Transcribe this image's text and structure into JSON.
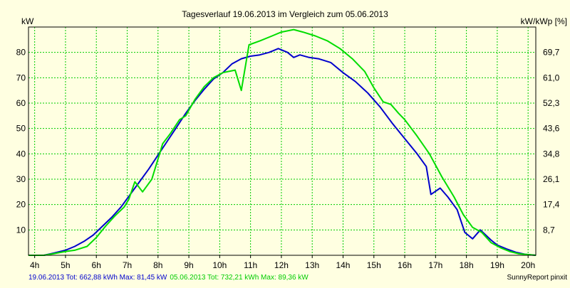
{
  "chart_data": {
    "type": "line",
    "title": "Tagesverlauf 19.06.2013 im Vergleich zum 05.06.2013",
    "ylabel_left": "kW",
    "ylabel_right": "kW/kWp [%]",
    "xlim": [
      3.8,
      20.25
    ],
    "ylim": [
      0,
      90
    ],
    "grid": true,
    "x_ticks": [
      {
        "x": 4,
        "label": "4h"
      },
      {
        "x": 5,
        "label": "5h"
      },
      {
        "x": 6,
        "label": "6h"
      },
      {
        "x": 7,
        "label": "7h"
      },
      {
        "x": 8,
        "label": "8h"
      },
      {
        "x": 9,
        "label": "9h"
      },
      {
        "x": 10,
        "label": "10h"
      },
      {
        "x": 11,
        "label": "11h"
      },
      {
        "x": 12,
        "label": "12h"
      },
      {
        "x": 13,
        "label": "13h"
      },
      {
        "x": 14,
        "label": "14h"
      },
      {
        "x": 15,
        "label": "15h"
      },
      {
        "x": 16,
        "label": "16h"
      },
      {
        "x": 17,
        "label": "17h"
      },
      {
        "x": 18,
        "label": "18h"
      },
      {
        "x": 19,
        "label": "19h"
      },
      {
        "x": 20,
        "label": "20h"
      }
    ],
    "y_ticks_left": [
      {
        "y": 10,
        "label": "10"
      },
      {
        "y": 20,
        "label": "20"
      },
      {
        "y": 30,
        "label": "30"
      },
      {
        "y": 40,
        "label": "40"
      },
      {
        "y": 50,
        "label": "50"
      },
      {
        "y": 60,
        "label": "60"
      },
      {
        "y": 70,
        "label": "70"
      },
      {
        "y": 80,
        "label": "80"
      }
    ],
    "y_ticks_right": [
      {
        "y": 10,
        "label": "8,7"
      },
      {
        "y": 20,
        "label": "17,4"
      },
      {
        "y": 30,
        "label": "26,1"
      },
      {
        "y": 40,
        "label": "34,8"
      },
      {
        "y": 50,
        "label": "43,6"
      },
      {
        "y": 60,
        "label": "52,3"
      },
      {
        "y": 70,
        "label": "61,0"
      },
      {
        "y": 80,
        "label": "69,7"
      }
    ],
    "series": [
      {
        "name": "19.06.2013",
        "color": "#0000cc",
        "points": [
          [
            3.8,
            0
          ],
          [
            4.3,
            0
          ],
          [
            4.6,
            0.8
          ],
          [
            5,
            2
          ],
          [
            5.3,
            3.5
          ],
          [
            5.6,
            5.5
          ],
          [
            5.9,
            8
          ],
          [
            6.2,
            11.5
          ],
          [
            6.5,
            15
          ],
          [
            6.8,
            19
          ],
          [
            7.1,
            24
          ],
          [
            7.4,
            29
          ],
          [
            7.7,
            34
          ],
          [
            8,
            39.5
          ],
          [
            8.3,
            45
          ],
          [
            8.6,
            50.5
          ],
          [
            8.9,
            56
          ],
          [
            9.2,
            61
          ],
          [
            9.5,
            65.5
          ],
          [
            9.8,
            69.5
          ],
          [
            10.1,
            72
          ],
          [
            10.4,
            75.5
          ],
          [
            10.7,
            77.5
          ],
          [
            11,
            78.5
          ],
          [
            11.3,
            79
          ],
          [
            11.6,
            80
          ],
          [
            11.9,
            81.5
          ],
          [
            12.2,
            80
          ],
          [
            12.4,
            78
          ],
          [
            12.6,
            79
          ],
          [
            12.9,
            78
          ],
          [
            13.2,
            77.5
          ],
          [
            13.6,
            76
          ],
          [
            14,
            72
          ],
          [
            14.4,
            68.5
          ],
          [
            14.8,
            64
          ],
          [
            15.2,
            58.5
          ],
          [
            15.6,
            52
          ],
          [
            16,
            46
          ],
          [
            16.4,
            40
          ],
          [
            16.7,
            35
          ],
          [
            16.85,
            24
          ],
          [
            17.15,
            26.5
          ],
          [
            17.4,
            23
          ],
          [
            17.7,
            18
          ],
          [
            17.95,
            9
          ],
          [
            18.2,
            6.5
          ],
          [
            18.45,
            10
          ],
          [
            18.8,
            6
          ],
          [
            19,
            4
          ],
          [
            19.3,
            2.5
          ],
          [
            19.6,
            1.2
          ],
          [
            19.9,
            0.4
          ],
          [
            20.25,
            0
          ]
        ]
      },
      {
        "name": "05.06.2013",
        "color": "#00dd00",
        "points": [
          [
            3.8,
            0
          ],
          [
            4.3,
            0
          ],
          [
            4.6,
            0.6
          ],
          [
            5,
            1.5
          ],
          [
            5.3,
            2
          ],
          [
            5.7,
            3.5
          ],
          [
            6,
            7
          ],
          [
            6.3,
            11.5
          ],
          [
            6.6,
            15.5
          ],
          [
            6.9,
            19
          ],
          [
            7.05,
            22
          ],
          [
            7.25,
            29
          ],
          [
            7.5,
            25
          ],
          [
            7.8,
            30
          ],
          [
            8,
            38
          ],
          [
            8.15,
            44
          ],
          [
            8.4,
            48
          ],
          [
            8.7,
            53.5
          ],
          [
            8.9,
            55
          ],
          [
            9.2,
            61.5
          ],
          [
            9.5,
            66.5
          ],
          [
            9.8,
            70
          ],
          [
            10.1,
            72
          ],
          [
            10.3,
            72.5
          ],
          [
            10.5,
            73
          ],
          [
            10.7,
            65
          ],
          [
            10.95,
            83
          ],
          [
            11.3,
            84.5
          ],
          [
            11.7,
            86.5
          ],
          [
            12,
            88
          ],
          [
            12.4,
            89
          ],
          [
            12.7,
            88
          ],
          [
            13.1,
            86.5
          ],
          [
            13.5,
            84.5
          ],
          [
            13.9,
            81.5
          ],
          [
            14.3,
            77.5
          ],
          [
            14.7,
            72.5
          ],
          [
            15,
            66
          ],
          [
            15.3,
            60.5
          ],
          [
            15.55,
            59.5
          ],
          [
            15.8,
            56
          ],
          [
            16,
            53.5
          ],
          [
            16.4,
            47
          ],
          [
            16.8,
            40
          ],
          [
            17.2,
            31
          ],
          [
            17.6,
            23
          ],
          [
            17.9,
            16
          ],
          [
            18.2,
            11
          ],
          [
            18.5,
            9
          ],
          [
            18.8,
            5
          ],
          [
            19.1,
            3
          ],
          [
            19.4,
            1.5
          ],
          [
            19.7,
            0.6
          ],
          [
            20.25,
            0
          ]
        ]
      }
    ],
    "footer_left": [
      {
        "text": "19.06.2013 Tot: 662,88 kWh Max: 81,45 kW",
        "color": "#0000cc"
      },
      {
        "text": "05.06.2013 Tot: 732,21 kWh Max: 89,36 kW",
        "color": "#00cc00"
      }
    ],
    "footer_right": "SunnyReport pinxit",
    "colors": {
      "background": "#ffffe1",
      "plot_background": "#ffffe1",
      "grid": "#00cc00",
      "axis": "#000000",
      "text": "#000000"
    }
  }
}
